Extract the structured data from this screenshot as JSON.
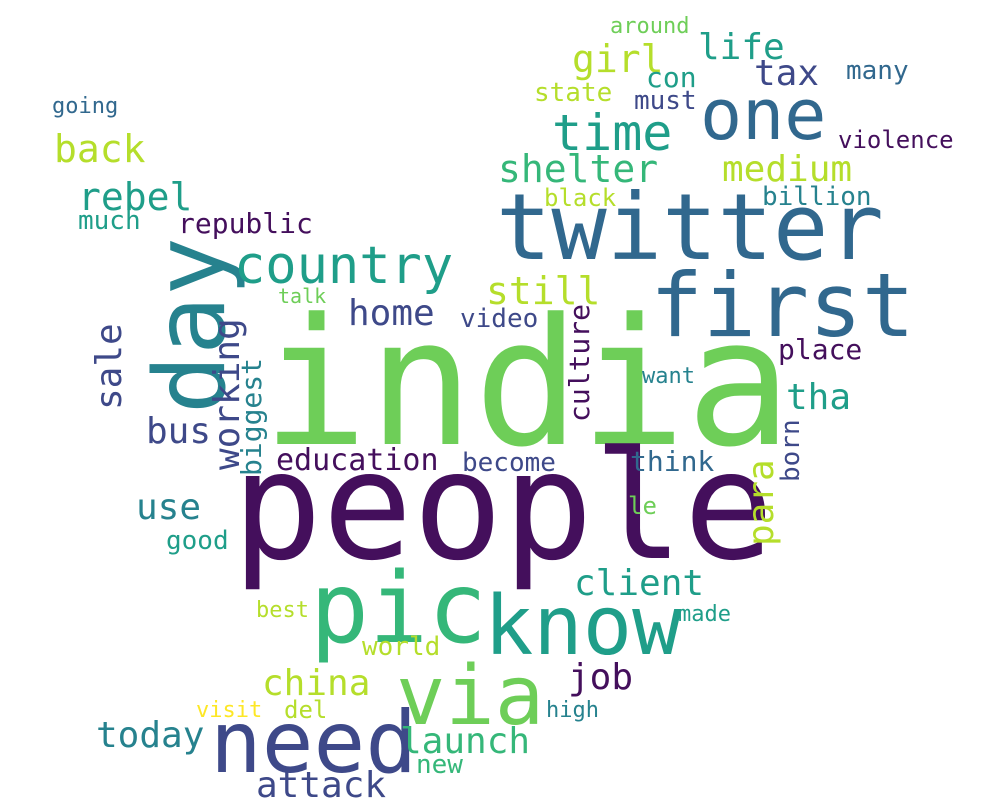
{
  "palette": {
    "deep_purple": "#440f5c",
    "indigo": "#3e4989",
    "blue": "#31688e",
    "teal": "#26828e",
    "green_teal": "#1f9e89",
    "green": "#35b779",
    "light_green": "#6ece58",
    "lime": "#b5de2b",
    "yellow": "#fde725"
  },
  "words": [
    {
      "text": "india"
    },
    {
      "text": "people"
    },
    {
      "text": "twitter"
    },
    {
      "text": "day"
    },
    {
      "text": "first"
    },
    {
      "text": "pic"
    },
    {
      "text": "know"
    },
    {
      "text": "need"
    },
    {
      "text": "via"
    },
    {
      "text": "one"
    },
    {
      "text": "country"
    },
    {
      "text": "time"
    },
    {
      "text": "shelter"
    },
    {
      "text": "rebel"
    },
    {
      "text": "back"
    },
    {
      "text": "girl"
    },
    {
      "text": "life"
    },
    {
      "text": "tax"
    },
    {
      "text": "medium"
    },
    {
      "text": "still"
    },
    {
      "text": "home"
    },
    {
      "text": "client"
    },
    {
      "text": "china"
    },
    {
      "text": "launch"
    },
    {
      "text": "attack"
    },
    {
      "text": "today"
    },
    {
      "text": "use"
    },
    {
      "text": "bus"
    },
    {
      "text": "job"
    },
    {
      "text": "education"
    },
    {
      "text": "sale"
    },
    {
      "text": "working"
    },
    {
      "text": "biggest"
    },
    {
      "text": "culture"
    },
    {
      "text": "para"
    },
    {
      "text": "tha"
    },
    {
      "text": "place"
    },
    {
      "text": "republic"
    },
    {
      "text": "much"
    },
    {
      "text": "video"
    },
    {
      "text": "become"
    },
    {
      "text": "think"
    },
    {
      "text": "born"
    },
    {
      "text": "many"
    },
    {
      "text": "violence"
    },
    {
      "text": "con"
    },
    {
      "text": "must"
    },
    {
      "text": "state"
    },
    {
      "text": "black"
    },
    {
      "text": "billion"
    },
    {
      "text": "around"
    },
    {
      "text": "going"
    },
    {
      "text": "talk"
    },
    {
      "text": "want"
    },
    {
      "text": "le"
    },
    {
      "text": "good"
    },
    {
      "text": "best"
    },
    {
      "text": "world"
    },
    {
      "text": "made"
    },
    {
      "text": "visit"
    },
    {
      "text": "del"
    },
    {
      "text": "high"
    },
    {
      "text": "new"
    }
  ]
}
